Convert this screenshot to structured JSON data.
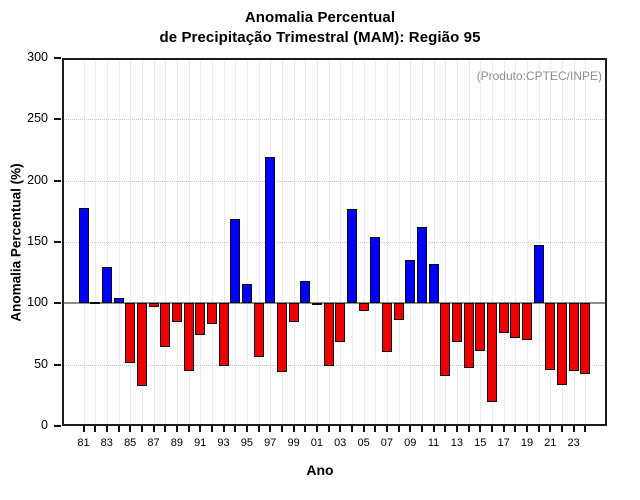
{
  "title": {
    "line1": "Anomalia Percentual",
    "line2": "de Precipitação Trimestral (MAM): Região 95"
  },
  "annotation": "(Produto:CPTEC/INPE)",
  "chart_data": {
    "type": "bar",
    "title": "Anomalia Percentual de Precipitação Trimestral (MAM): Região 95",
    "xlabel": "Ano",
    "ylabel": "Anomalia Percentual (%)",
    "ylim": [
      0,
      300
    ],
    "yticks": [
      0,
      50,
      100,
      150,
      200,
      250,
      300
    ],
    "baseline": 100,
    "grid": "dotted",
    "legend": null,
    "x_tick_labels": [
      "81",
      "83",
      "85",
      "87",
      "89",
      "91",
      "93",
      "95",
      "97",
      "99",
      "01",
      "03",
      "05",
      "07",
      "09",
      "11",
      "13",
      "15",
      "17",
      "19",
      "21",
      "23"
    ],
    "categories": [
      "81",
      "82",
      "83",
      "84",
      "85",
      "86",
      "87",
      "88",
      "89",
      "90",
      "91",
      "92",
      "93",
      "94",
      "95",
      "96",
      "97",
      "98",
      "99",
      "00",
      "01",
      "02",
      "03",
      "04",
      "05",
      "06",
      "07",
      "08",
      "09",
      "10",
      "11",
      "12",
      "13",
      "14",
      "15",
      "16",
      "17",
      "18",
      "19",
      "20",
      "21",
      "22",
      "23",
      "24"
    ],
    "values": [
      178,
      101,
      130,
      104,
      51,
      32.5,
      97,
      64,
      85,
      44.5,
      74,
      83,
      49,
      169,
      116,
      56,
      219,
      44,
      85,
      118,
      100.5,
      48.5,
      68.5,
      177,
      94,
      154,
      60.5,
      86,
      135,
      162,
      132,
      40.5,
      68.5,
      47.5,
      61,
      19.5,
      76,
      72,
      70,
      148,
      45.5,
      33,
      44.5,
      42
    ],
    "colors": {
      "above_baseline": "#0000ff",
      "below_baseline": "#ee0000",
      "baseline_line": "#8d8d8d",
      "bar_border": "#0a0a0a"
    }
  }
}
